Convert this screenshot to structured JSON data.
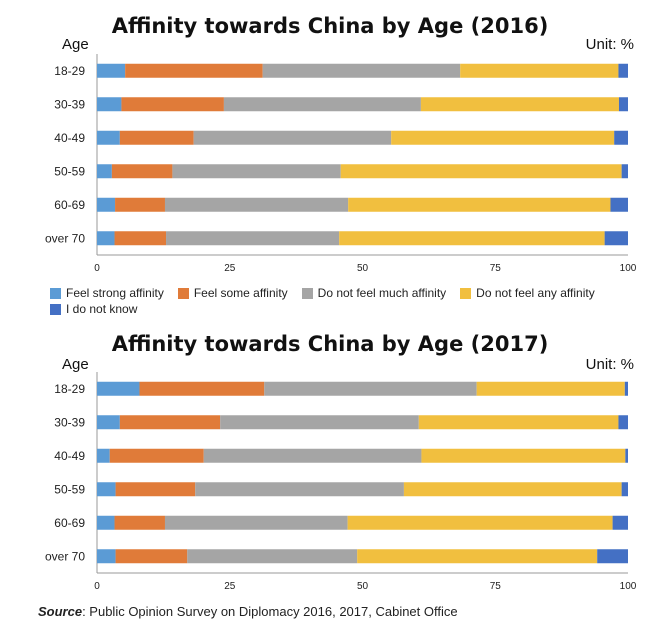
{
  "source": {
    "label": "Source",
    "text": ": Public Opinion Survey on Diplomacy 2016, 2017, Cabinet Office"
  },
  "colors": {
    "Feel strong affinity": "#5b9bd5",
    "Feel some affinity": "#e07b39",
    "Do not feel much affinity": "#a5a5a5",
    "Do not feel any affinity": "#f1bf3f",
    "I do not know": "#4470c4"
  },
  "chart_data": [
    {
      "type": "bar",
      "orientation": "horizontal",
      "stacked": true,
      "title": "Affinity towards China by Age (2016)",
      "ylabel": "Age",
      "unit_label": "Unit: %",
      "categories": [
        "18-29",
        "30-39",
        "40-49",
        "50-59",
        "60-69",
        "over 70"
      ],
      "xlim": [
        0,
        100
      ],
      "xticks": [
        0,
        25,
        50,
        75,
        100
      ],
      "legend_position": "bottom",
      "series": [
        {
          "name": "Feel strong affinity",
          "values": [
            5.3,
            4.6,
            4.3,
            2.8,
            3.4,
            3.3
          ]
        },
        {
          "name": "Feel some affinity",
          "values": [
            25.9,
            19.3,
            13.9,
            11.4,
            9.4,
            9.7
          ]
        },
        {
          "name": "Do not feel much affinity",
          "values": [
            37.2,
            37.1,
            37.2,
            31.7,
            34.5,
            32.6
          ]
        },
        {
          "name": "Do not feel any affinity",
          "values": [
            29.8,
            37.3,
            42.0,
            52.9,
            49.4,
            50.0
          ]
        },
        {
          "name": "I do not know",
          "values": [
            1.8,
            1.7,
            2.6,
            1.2,
            3.3,
            4.4
          ]
        }
      ]
    },
    {
      "type": "bar",
      "orientation": "horizontal",
      "stacked": true,
      "title": "Affinity towards China by Age (2017)",
      "ylabel": "Age",
      "unit_label": "Unit: %",
      "categories": [
        "18-29",
        "30-39",
        "40-49",
        "50-59",
        "60-69",
        "over 70"
      ],
      "xlim": [
        0,
        100
      ],
      "xticks": [
        0,
        25,
        50,
        75,
        100
      ],
      "series": [
        {
          "name": "Feel strong affinity",
          "values": [
            8.0,
            4.3,
            2.4,
            3.5,
            3.3,
            3.5
          ]
        },
        {
          "name": "Feel some affinity",
          "values": [
            23.5,
            18.9,
            17.7,
            15.0,
            9.5,
            13.5
          ]
        },
        {
          "name": "Do not feel much affinity",
          "values": [
            40.0,
            37.4,
            41.0,
            39.3,
            34.4,
            32.0
          ]
        },
        {
          "name": "Do not feel any affinity",
          "values": [
            27.9,
            37.6,
            38.4,
            41.0,
            49.9,
            45.2
          ]
        },
        {
          "name": "I do not know",
          "values": [
            0.6,
            1.8,
            0.5,
            1.2,
            2.9,
            5.8
          ]
        }
      ]
    }
  ]
}
